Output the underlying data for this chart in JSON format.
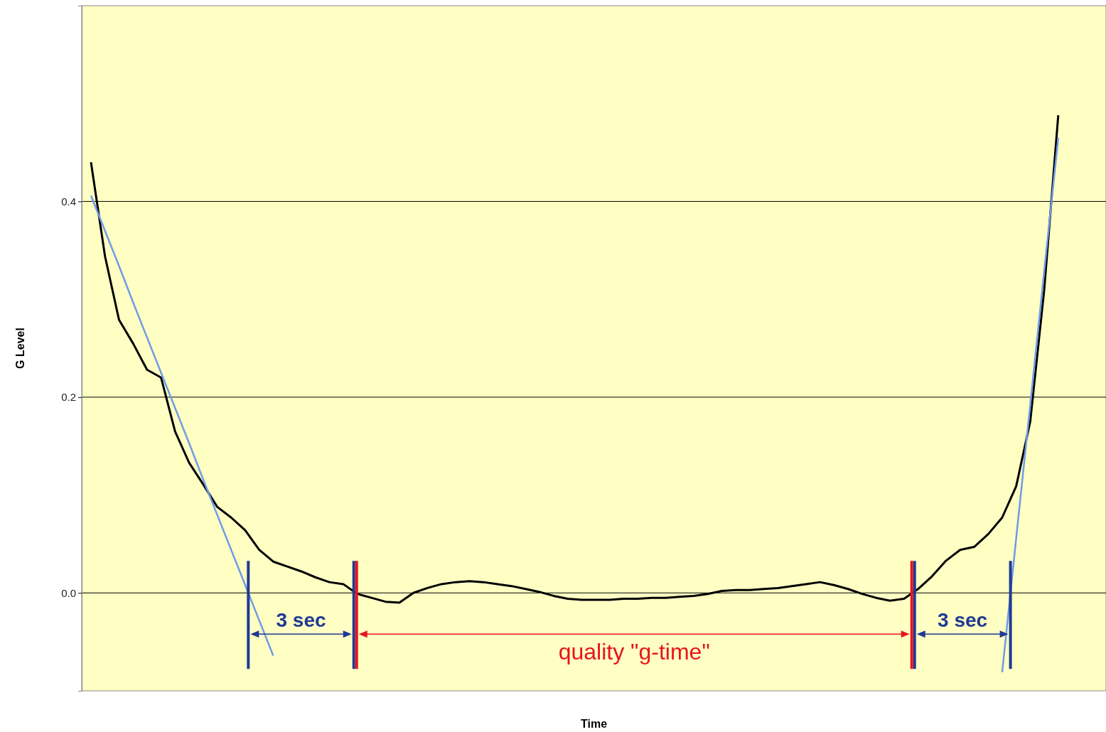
{
  "chart_data": {
    "type": "line",
    "xlabel": "Time",
    "ylabel": "G Level",
    "ylim": [
      -0.1,
      0.6
    ],
    "categories": [
      null,
      null,
      null,
      null,
      null,
      null,
      null,
      null,
      null,
      null,
      null,
      null,
      null,
      null,
      null,
      null,
      null,
      null,
      null,
      null,
      null,
      null,
      null,
      null,
      null,
      null,
      null,
      null,
      null,
      null,
      null,
      null,
      null,
      null,
      null,
      null,
      null,
      null,
      null,
      null,
      null,
      null,
      null,
      null,
      null,
      null,
      null,
      null,
      null,
      null,
      null,
      null,
      null,
      null,
      null,
      null,
      null,
      null,
      null,
      null,
      null,
      null,
      null,
      null,
      null,
      null,
      null,
      null,
      null,
      null,
      null,
      null,
      null
    ],
    "yticks": [
      {
        "value": 0,
        "label": "0.0"
      },
      {
        "value": 0.2,
        "label": "0.2"
      },
      {
        "value": 0.4,
        "label": "0.4"
      }
    ],
    "tick_labels": "y",
    "grid": "y",
    "series": [
      {
        "color": "#000000",
        "values": [
          0.44,
          0.344,
          0.279,
          0.255,
          0.228,
          0.22,
          0.165,
          0.133,
          0.111,
          0.088,
          0.077,
          0.064,
          0.044,
          0.032,
          0.027,
          0.022,
          0.016,
          0.011,
          0.009,
          -0.001,
          -0.005,
          -0.009,
          -0.01,
          0,
          0.005,
          0.009,
          0.011,
          0.012,
          0.011,
          0.009,
          0.007,
          0.004,
          0.001,
          -0.003,
          -0.006,
          -0.007,
          -0.007,
          -0.007,
          -0.006,
          -0.006,
          -0.005,
          -0.005,
          -0.004,
          -0.003,
          -0.001,
          0.002,
          0.003,
          0.003,
          0.004,
          0.005,
          0.007,
          0.009,
          0.011,
          0.008,
          0.004,
          -0.001,
          -0.005,
          -0.008,
          -0.006,
          0.004,
          0.017,
          0.033,
          0.044,
          0.047,
          0.06,
          0.077,
          0.109,
          0.175,
          0.31,
          0.488,
          null,
          null,
          null
        ]
      },
      {
        "color": "#6f9be6",
        "values": [
          0.406,
          0.37,
          0.334,
          0.297,
          0.261,
          0.225,
          0.189,
          0.153,
          0.116,
          0.08,
          0.044,
          0.008,
          -0.028,
          -0.064,
          null,
          null,
          null,
          null,
          null,
          null,
          null,
          null,
          null,
          null,
          null,
          null,
          null,
          null,
          null,
          null,
          null,
          null,
          null,
          null,
          null,
          null,
          null,
          null,
          null,
          null,
          null,
          null,
          null,
          null,
          null,
          null,
          null,
          null,
          null,
          null,
          null,
          null,
          null,
          null,
          null,
          null,
          null,
          null,
          null,
          null,
          null,
          null,
          null,
          null,
          null,
          null,
          null,
          null,
          null,
          null,
          null,
          null,
          null
        ]
      },
      {
        "color": "#6f9be6",
        "values": [
          null,
          null,
          null,
          null,
          null,
          null,
          null,
          null,
          null,
          null,
          null,
          null,
          null,
          null,
          null,
          null,
          null,
          null,
          null,
          null,
          null,
          null,
          null,
          null,
          null,
          null,
          null,
          null,
          null,
          null,
          null,
          null,
          null,
          null,
          null,
          null,
          null,
          null,
          null,
          null,
          null,
          null,
          null,
          null,
          null,
          null,
          null,
          null,
          null,
          null,
          null,
          null,
          null,
          null,
          null,
          null,
          null,
          null,
          null,
          null,
          null,
          null,
          null,
          null,
          null,
          -0.081,
          0.056,
          0.192,
          0.329,
          0.465,
          null,
          null,
          null
        ]
      }
    ],
    "annotations": [
      "3 sec",
      "3 sec",
      "quality \"g-time\""
    ]
  }
}
